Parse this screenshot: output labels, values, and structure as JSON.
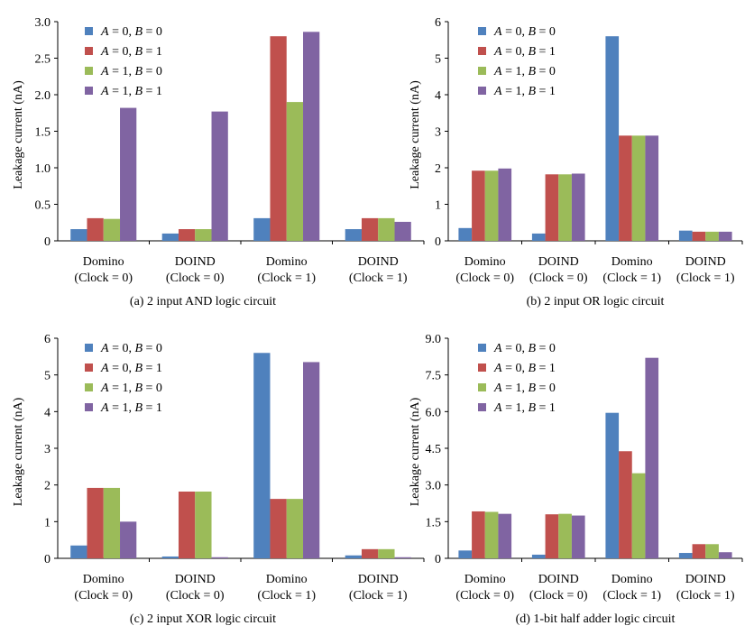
{
  "legend": [
    {
      "var1": "A",
      "val1": "0",
      "var2": "B",
      "val2": "0"
    },
    {
      "var1": "A",
      "val1": "0",
      "var2": "B",
      "val2": "1"
    },
    {
      "var1": "A",
      "val1": "1",
      "var2": "B",
      "val2": "0"
    },
    {
      "var1": "A",
      "val1": "1",
      "var2": "B",
      "val2": "1"
    }
  ],
  "colors": {
    "series": [
      "#4F81BD",
      "#C0504D",
      "#9BBB59",
      "#8064A2"
    ]
  },
  "chart_data": [
    {
      "type": "bar",
      "caption": "(a) 2 input AND logic circuit",
      "ylabel": "Leakage current (nA)",
      "ylim": [
        0,
        3.0
      ],
      "yticks": [
        "0",
        "0.5",
        "1.0",
        "1.5",
        "2.0",
        "2.5",
        "3.0"
      ],
      "categories": [
        [
          "Domino",
          "(Clock = 0)"
        ],
        [
          "DOIND",
          "(Clock = 0)"
        ],
        [
          "Domino",
          "(Clock = 1)"
        ],
        [
          "DOIND",
          "(Clock = 1)"
        ]
      ],
      "series": [
        {
          "values": [
            0.16,
            0.1,
            0.31,
            0.16
          ]
        },
        {
          "values": [
            0.31,
            0.16,
            2.8,
            0.31
          ]
        },
        {
          "values": [
            0.3,
            0.16,
            1.9,
            0.31
          ]
        },
        {
          "values": [
            1.82,
            1.77,
            2.86,
            0.26
          ]
        }
      ]
    },
    {
      "type": "bar",
      "caption": "(b) 2 input OR logic circuit",
      "ylabel": "Leakage current (nA)",
      "ylim": [
        0,
        6
      ],
      "yticks": [
        "0",
        "1",
        "2",
        "3",
        "4",
        "5",
        "6"
      ],
      "categories": [
        [
          "Domino",
          "(Clock = 0)"
        ],
        [
          "DOIND",
          "(Clock = 0)"
        ],
        [
          "Domino",
          "(Clock = 1)"
        ],
        [
          "DOIND",
          "(Clock = 1)"
        ]
      ],
      "series": [
        {
          "values": [
            0.35,
            0.2,
            5.6,
            0.28
          ]
        },
        {
          "values": [
            1.92,
            1.82,
            2.88,
            0.25
          ]
        },
        {
          "values": [
            1.92,
            1.82,
            2.88,
            0.25
          ]
        },
        {
          "values": [
            1.98,
            1.84,
            2.88,
            0.25
          ]
        }
      ]
    },
    {
      "type": "bar",
      "caption": "(c) 2 input XOR logic circuit",
      "ylabel": "Leakage current (nA)",
      "ylim": [
        0,
        6
      ],
      "yticks": [
        "0",
        "1",
        "2",
        "3",
        "4",
        "5",
        "6"
      ],
      "categories": [
        [
          "Domino",
          "(Clock = 0)"
        ],
        [
          "DOIND",
          "(Clock = 0)"
        ],
        [
          "Domino",
          "(Clock = 1)"
        ],
        [
          "DOIND",
          "(Clock = 1)"
        ]
      ],
      "series": [
        {
          "values": [
            0.35,
            0.05,
            5.6,
            0.08
          ]
        },
        {
          "values": [
            1.92,
            1.82,
            1.62,
            0.25
          ]
        },
        {
          "values": [
            1.92,
            1.82,
            1.62,
            0.25
          ]
        },
        {
          "values": [
            1.0,
            0.03,
            5.35,
            0.03
          ]
        }
      ]
    },
    {
      "type": "bar",
      "caption": "(d) 1-bit half adder logic circuit",
      "ylabel": "Leakage current (nA)",
      "ylim": [
        0,
        9.0
      ],
      "yticks": [
        "0",
        "1.5",
        "3.0",
        "4.5",
        "6.0",
        "7.5",
        "9.0"
      ],
      "categories": [
        [
          "Domino",
          "(Clock = 0)"
        ],
        [
          "DOIND",
          "(Clock = 0)"
        ],
        [
          "Domino",
          "(Clock = 1)"
        ],
        [
          "DOIND",
          "(Clock = 1)"
        ]
      ],
      "series": [
        {
          "values": [
            0.32,
            0.15,
            5.95,
            0.22
          ]
        },
        {
          "values": [
            1.92,
            1.8,
            4.38,
            0.58
          ]
        },
        {
          "values": [
            1.9,
            1.82,
            3.48,
            0.58
          ]
        },
        {
          "values": [
            1.82,
            1.75,
            8.2,
            0.25
          ]
        }
      ]
    }
  ]
}
